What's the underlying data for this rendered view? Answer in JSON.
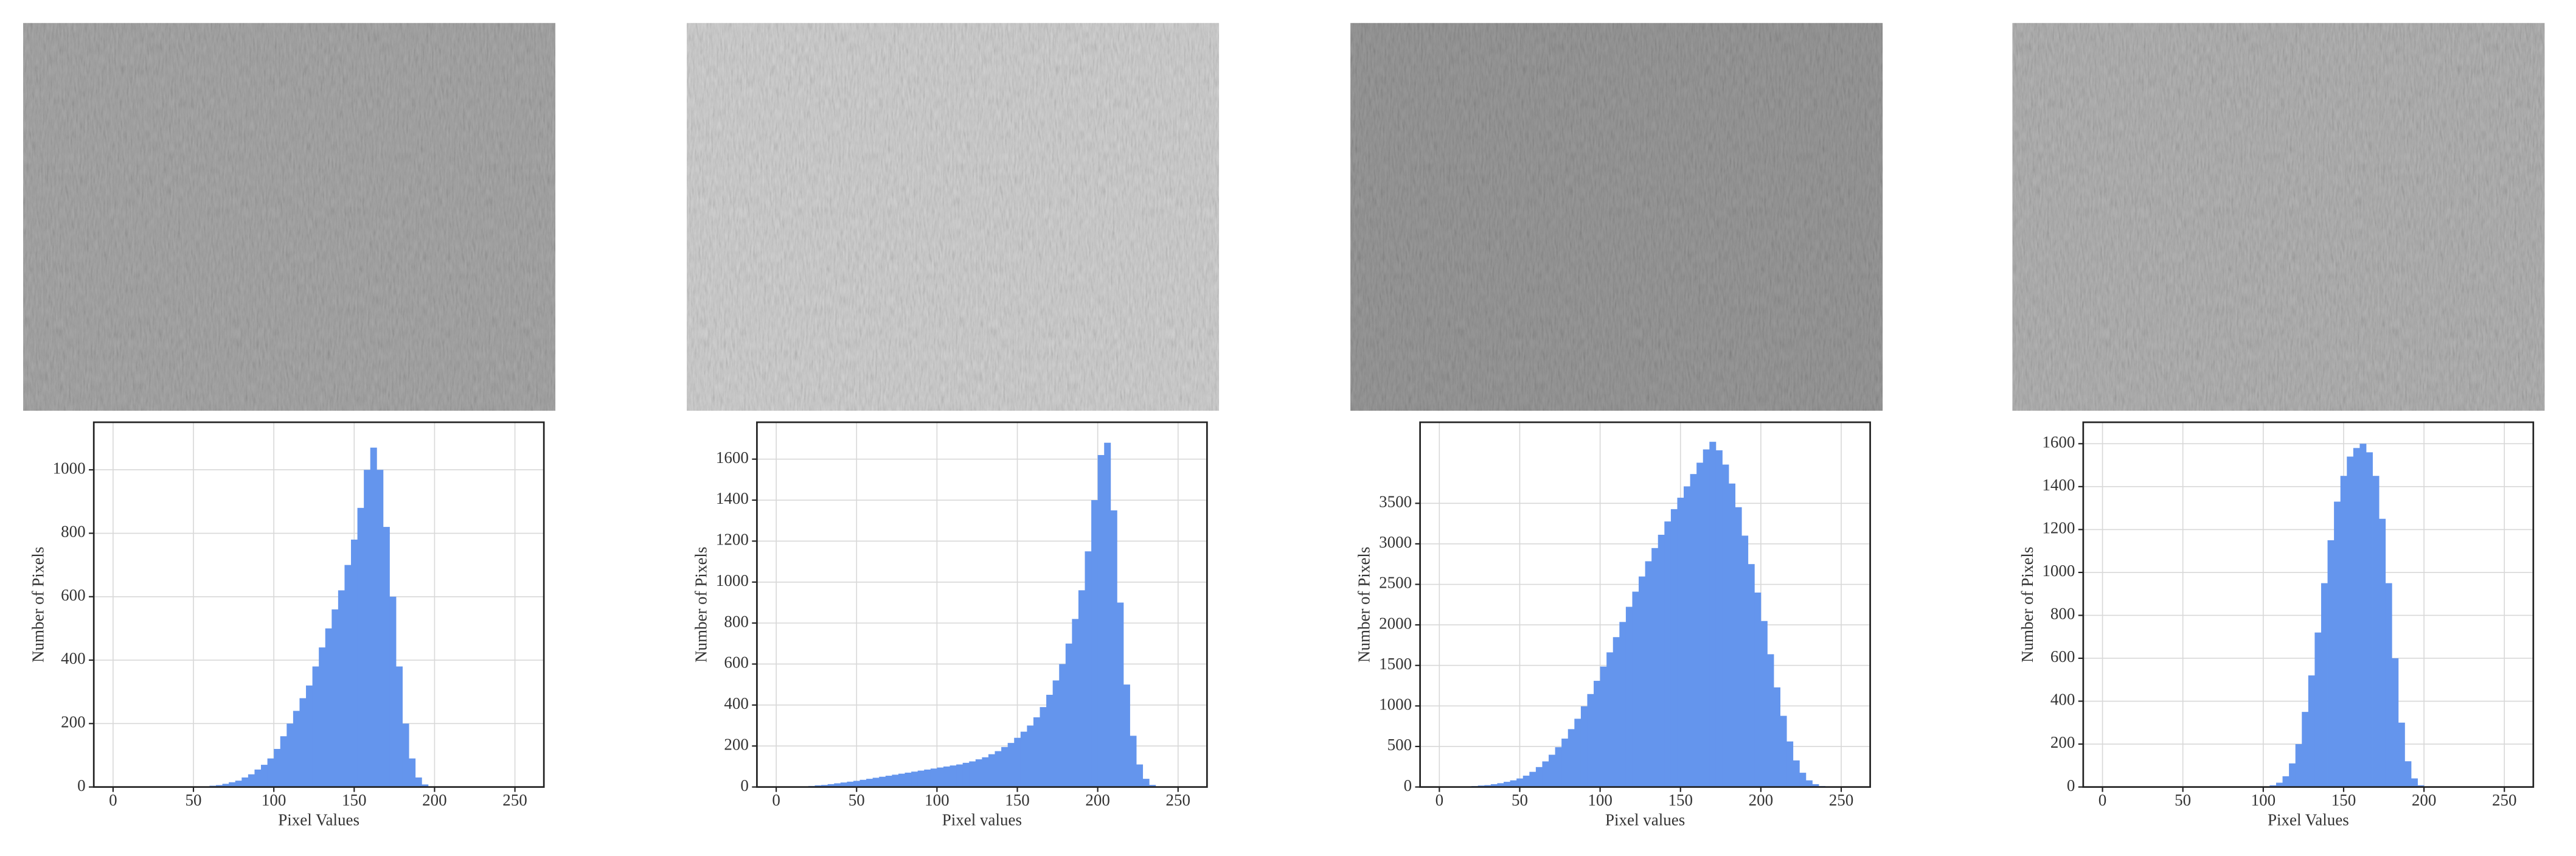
{
  "chart_data": [
    {
      "type": "histogram",
      "xlabel": "Pixel Values",
      "ylabel": "Number of Pixels",
      "color": "#6495ed",
      "grid": true,
      "xlim": [
        -12,
        268
      ],
      "ylim": [
        0,
        1150
      ],
      "xticks": [
        0,
        50,
        100,
        150,
        200,
        250
      ],
      "yticks": [
        0,
        200,
        400,
        600,
        800,
        1000
      ],
      "bins": [
        0,
        4,
        8,
        12,
        16,
        20,
        24,
        28,
        32,
        36,
        40,
        44,
        48,
        52,
        56,
        60,
        64,
        68,
        72,
        76,
        80,
        84,
        88,
        92,
        96,
        100,
        104,
        108,
        112,
        116,
        120,
        124,
        128,
        132,
        136,
        140,
        144,
        148,
        152,
        156,
        160,
        164,
        168,
        172,
        176,
        180,
        184,
        188,
        192,
        196,
        200,
        204,
        208,
        212,
        216,
        220,
        224,
        228,
        232,
        236,
        240,
        244,
        248,
        252,
        256
      ],
      "values": [
        0,
        0,
        0,
        0,
        0,
        0,
        0,
        0,
        0,
        0,
        0,
        0,
        0,
        0,
        2,
        4,
        6,
        10,
        15,
        20,
        30,
        40,
        55,
        70,
        90,
        120,
        160,
        200,
        240,
        280,
        320,
        380,
        440,
        500,
        560,
        620,
        700,
        780,
        880,
        1000,
        1070,
        1000,
        820,
        600,
        380,
        200,
        90,
        30,
        8,
        2,
        0,
        0,
        0,
        0,
        0,
        0,
        0,
        0,
        0,
        0,
        0,
        0,
        0,
        0
      ]
    },
    {
      "type": "histogram",
      "xlabel": "Pixel values",
      "ylabel": "Number of Pixels",
      "color": "#6495ed",
      "grid": true,
      "xlim": [
        -12,
        268
      ],
      "ylim": [
        0,
        1780
      ],
      "xticks": [
        0,
        50,
        100,
        150,
        200,
        250
      ],
      "yticks": [
        0,
        200,
        400,
        600,
        800,
        1000,
        1200,
        1400,
        1600
      ],
      "bins": [
        0,
        4,
        8,
        12,
        16,
        20,
        24,
        28,
        32,
        36,
        40,
        44,
        48,
        52,
        56,
        60,
        64,
        68,
        72,
        76,
        80,
        84,
        88,
        92,
        96,
        100,
        104,
        108,
        112,
        116,
        120,
        124,
        128,
        132,
        136,
        140,
        144,
        148,
        152,
        156,
        160,
        164,
        168,
        172,
        176,
        180,
        184,
        188,
        192,
        196,
        200,
        204,
        208,
        212,
        216,
        220,
        224,
        228,
        232,
        236,
        240,
        244,
        248,
        252,
        256
      ],
      "values": [
        0,
        0,
        0,
        0,
        3,
        5,
        8,
        10,
        14,
        18,
        22,
        26,
        30,
        35,
        40,
        45,
        50,
        55,
        60,
        65,
        70,
        75,
        80,
        85,
        90,
        95,
        100,
        105,
        110,
        118,
        125,
        135,
        145,
        160,
        175,
        195,
        215,
        240,
        270,
        300,
        340,
        390,
        450,
        520,
        600,
        700,
        820,
        960,
        1150,
        1400,
        1620,
        1680,
        1350,
        900,
        500,
        250,
        110,
        40,
        10,
        0,
        0,
        0,
        0,
        0
      ]
    },
    {
      "type": "histogram",
      "xlabel": "Pixel values",
      "ylabel": "Number of Pixels",
      "color": "#6495ed",
      "grid": true,
      "xlim": [
        -12,
        268
      ],
      "ylim": [
        0,
        4500
      ],
      "xticks": [
        0,
        50,
        100,
        150,
        200,
        250
      ],
      "yticks": [
        0,
        500,
        1000,
        1500,
        2000,
        2500,
        3000,
        3500
      ],
      "bins": [
        0,
        4,
        8,
        12,
        16,
        20,
        24,
        28,
        32,
        36,
        40,
        44,
        48,
        52,
        56,
        60,
        64,
        68,
        72,
        76,
        80,
        84,
        88,
        92,
        96,
        100,
        104,
        108,
        112,
        116,
        120,
        124,
        128,
        132,
        136,
        140,
        144,
        148,
        152,
        156,
        160,
        164,
        168,
        172,
        176,
        180,
        184,
        188,
        192,
        196,
        200,
        204,
        208,
        212,
        216,
        220,
        224,
        228,
        232,
        236,
        240,
        244,
        248,
        252,
        256
      ],
      "values": [
        0,
        0,
        0,
        0,
        6,
        12,
        18,
        23,
        35,
        47,
        64,
        82,
        105,
        140,
        187,
        246,
        316,
        398,
        491,
        597,
        714,
        842,
        995,
        1147,
        1310,
        1486,
        1661,
        1849,
        2036,
        2223,
        2410,
        2597,
        2785,
        2948,
        3112,
        3276,
        3428,
        3569,
        3709,
        3861,
        4001,
        4165,
        4259,
        4154,
        3978,
        3744,
        3452,
        3101,
        2750,
        2399,
        2048,
        1638,
        1229,
        878,
        562,
        328,
        176,
        82,
        35,
        12,
        0,
        0,
        0,
        0
      ]
    },
    {
      "type": "histogram",
      "xlabel": "Pixel Values",
      "ylabel": "Number of Pixels",
      "color": "#6495ed",
      "grid": true,
      "xlim": [
        -12,
        268
      ],
      "ylim": [
        0,
        1700
      ],
      "xticks": [
        0,
        50,
        100,
        150,
        200,
        250
      ],
      "yticks": [
        0,
        200,
        400,
        600,
        800,
        1000,
        1200,
        1400,
        1600
      ],
      "bins": [
        0,
        4,
        8,
        12,
        16,
        20,
        24,
        28,
        32,
        36,
        40,
        44,
        48,
        52,
        56,
        60,
        64,
        68,
        72,
        76,
        80,
        84,
        88,
        92,
        96,
        100,
        104,
        108,
        112,
        116,
        120,
        124,
        128,
        132,
        136,
        140,
        144,
        148,
        152,
        156,
        160,
        164,
        168,
        172,
        176,
        180,
        184,
        188,
        192,
        196,
        200,
        204,
        208,
        212,
        216,
        220,
        224,
        228,
        232,
        236,
        240,
        244,
        248,
        252,
        256
      ],
      "values": [
        0,
        0,
        0,
        0,
        0,
        0,
        0,
        0,
        0,
        0,
        0,
        0,
        0,
        0,
        0,
        0,
        0,
        0,
        0,
        0,
        0,
        0,
        0,
        0,
        1,
        3,
        8,
        20,
        50,
        110,
        200,
        350,
        520,
        720,
        950,
        1150,
        1330,
        1450,
        1540,
        1580,
        1600,
        1560,
        1450,
        1250,
        950,
        600,
        300,
        120,
        40,
        8,
        0,
        0,
        0,
        0,
        0,
        0,
        0,
        0,
        0,
        0,
        0,
        0,
        0,
        0
      ]
    }
  ]
}
